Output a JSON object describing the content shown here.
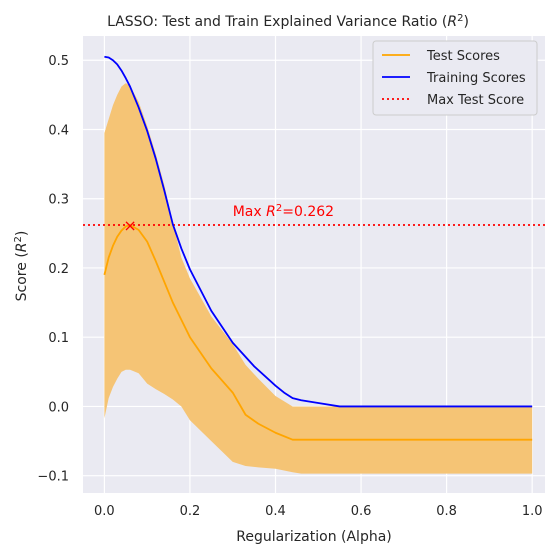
{
  "chart_data": {
    "type": "line",
    "title": "LASSO: Test and Train Explained Variance Ratio (R²)",
    "xlabel": "Regularization (Alpha)",
    "ylabel": "Score (R²)",
    "xlim": [
      -0.05,
      1.03
    ],
    "ylim": [
      -0.125,
      0.535
    ],
    "x_ticks": [
      0.0,
      0.2,
      0.4,
      0.6,
      0.8,
      1.0
    ],
    "y_ticks": [
      -0.1,
      0.0,
      0.1,
      0.2,
      0.3,
      0.4,
      0.5
    ],
    "x_tick_labels": [
      "0.0",
      "0.2",
      "0.4",
      "0.6",
      "0.8",
      "1.0"
    ],
    "y_tick_labels": [
      "−0.1",
      "0.0",
      "0.1",
      "0.2",
      "0.3",
      "0.4",
      "0.5"
    ],
    "grid": true,
    "legend_position": "top-right",
    "series": [
      {
        "name": "Test Scores",
        "color": "#ffa500",
        "x": [
          0.0,
          0.01,
          0.02,
          0.03,
          0.04,
          0.05,
          0.06,
          0.08,
          0.1,
          0.12,
          0.14,
          0.16,
          0.18,
          0.2,
          0.25,
          0.3,
          0.33,
          0.36,
          0.4,
          0.44,
          0.46,
          0.5,
          0.55,
          0.6,
          0.7,
          0.8,
          0.9,
          1.0
        ],
        "y": [
          0.19,
          0.215,
          0.232,
          0.245,
          0.254,
          0.26,
          0.262,
          0.255,
          0.238,
          0.21,
          0.18,
          0.15,
          0.125,
          0.1,
          0.055,
          0.02,
          -0.012,
          -0.025,
          -0.038,
          -0.048,
          -0.048,
          -0.048,
          -0.048,
          -0.048,
          -0.048,
          -0.048,
          -0.048,
          -0.048
        ]
      },
      {
        "name": "Training Scores",
        "color": "#0000ff",
        "x": [
          0.0,
          0.01,
          0.02,
          0.03,
          0.04,
          0.05,
          0.06,
          0.08,
          0.1,
          0.12,
          0.14,
          0.16,
          0.18,
          0.2,
          0.25,
          0.3,
          0.35,
          0.4,
          0.42,
          0.44,
          0.46,
          0.5,
          0.55,
          0.6,
          0.7,
          0.8,
          0.9,
          1.0
        ],
        "y": [
          0.505,
          0.504,
          0.5,
          0.494,
          0.485,
          0.474,
          0.462,
          0.432,
          0.398,
          0.358,
          0.312,
          0.263,
          0.228,
          0.198,
          0.138,
          0.092,
          0.058,
          0.03,
          0.02,
          0.012,
          0.009,
          0.005,
          0.0,
          0.0,
          0.0,
          0.0,
          0.0,
          0.0
        ]
      },
      {
        "name": "Max Test Score",
        "color": "#ff0000",
        "style": "dotted",
        "y_value": 0.262
      }
    ],
    "band": {
      "color": "#f5c475",
      "x": [
        0.0,
        0.01,
        0.02,
        0.03,
        0.04,
        0.05,
        0.06,
        0.08,
        0.1,
        0.12,
        0.14,
        0.16,
        0.18,
        0.2,
        0.25,
        0.3,
        0.33,
        0.36,
        0.4,
        0.44,
        0.46,
        0.5,
        0.55,
        0.6,
        0.7,
        0.8,
        0.9,
        1.0
      ],
      "upper": [
        0.395,
        0.415,
        0.435,
        0.45,
        0.462,
        0.467,
        0.463,
        0.44,
        0.405,
        0.365,
        0.32,
        0.265,
        0.215,
        0.185,
        0.13,
        0.09,
        0.06,
        0.04,
        0.015,
        0.0,
        0.0,
        0.0,
        0.0,
        0.0,
        0.0,
        0.0,
        0.0,
        0.0
      ],
      "lower": [
        -0.017,
        0.012,
        0.028,
        0.04,
        0.05,
        0.053,
        0.053,
        0.048,
        0.033,
        0.025,
        0.018,
        0.01,
        0.0,
        -0.02,
        -0.05,
        -0.08,
        -0.086,
        -0.088,
        -0.09,
        -0.095,
        -0.097,
        -0.097,
        -0.097,
        -0.097,
        -0.097,
        -0.097,
        -0.097,
        -0.097
      ]
    },
    "max_marker": {
      "x": 0.06,
      "y": 0.262,
      "symbol": "×"
    },
    "annotation": {
      "text_prefix": "Max ",
      "text_suffix": "=0.262",
      "x": 0.3,
      "y": 0.275,
      "color": "#ff0000"
    }
  }
}
